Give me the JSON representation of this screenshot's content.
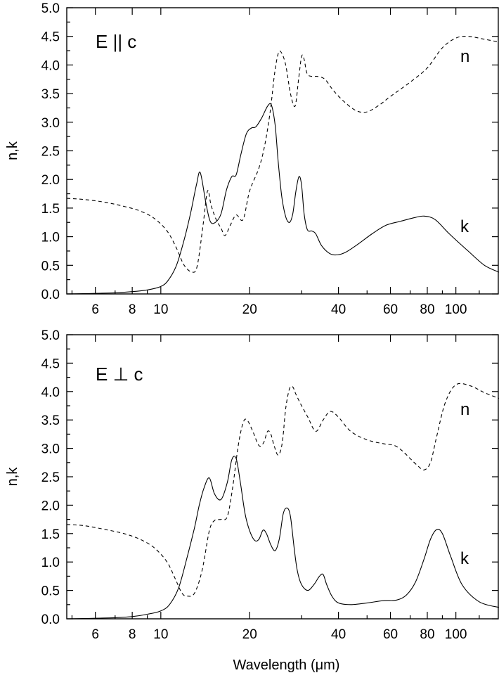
{
  "chart_data": [
    {
      "type": "line",
      "annotation": "E || c",
      "xlabel": "",
      "ylabel": "n,k",
      "x_scale": "log",
      "xlim": [
        4.8,
        140
      ],
      "ylim": [
        0,
        5
      ],
      "x_ticks": [
        6,
        8,
        10,
        20,
        40,
        60,
        80,
        100
      ],
      "y_ticks": [
        0.0,
        0.5,
        1.0,
        1.5,
        2.0,
        2.5,
        3.0,
        3.5,
        4.0,
        4.5,
        5.0
      ],
      "series": [
        {
          "name": "n",
          "style": "dashed",
          "x": [
            4.8,
            5.5,
            6.5,
            7.5,
            8.5,
            9.5,
            10.5,
            11.3,
            12.0,
            12.8,
            13.3,
            13.9,
            14.4,
            14.8,
            15.4,
            16.0,
            16.5,
            17.2,
            18.0,
            19.0,
            20.0,
            21.5,
            22.5,
            23.5,
            24.3,
            25.0,
            25.6,
            26.5,
            27.5,
            28.5,
            29.3,
            30.0,
            30.6,
            31.3,
            32.5,
            34.0,
            36.0,
            38.5,
            42.0,
            46.0,
            50.0,
            55.0,
            60.0,
            70.0,
            80.0,
            90.0,
            100.0,
            110.0,
            125.0,
            140.0
          ],
          "y": [
            1.67,
            1.65,
            1.6,
            1.53,
            1.45,
            1.32,
            1.1,
            0.8,
            0.5,
            0.38,
            0.5,
            1.2,
            1.8,
            1.55,
            1.3,
            1.15,
            1.02,
            1.2,
            1.38,
            1.3,
            1.8,
            2.2,
            2.6,
            3.2,
            3.85,
            4.2,
            4.22,
            4.0,
            3.5,
            3.28,
            3.75,
            4.15,
            4.1,
            3.85,
            3.8,
            3.8,
            3.75,
            3.55,
            3.35,
            3.2,
            3.18,
            3.3,
            3.45,
            3.7,
            3.95,
            4.3,
            4.47,
            4.5,
            4.45,
            4.4
          ]
        },
        {
          "name": "k",
          "style": "solid",
          "x": [
            4.8,
            6.0,
            7.0,
            8.0,
            9.0,
            10.0,
            10.6,
            11.3,
            12.0,
            12.6,
            13.2,
            13.6,
            14.2,
            14.7,
            15.3,
            16.0,
            16.7,
            17.4,
            18.0,
            18.7,
            19.5,
            20.3,
            21.0,
            22.0,
            23.0,
            23.7,
            24.4,
            25.0,
            25.7,
            26.5,
            27.3,
            28.0,
            28.7,
            29.4,
            30.0,
            30.6,
            31.4,
            32.5,
            33.5,
            35.0,
            37.0,
            39.0,
            42.0,
            46.0,
            52.0,
            58.0,
            65.0,
            72.0,
            78.0,
            85.0,
            95.0,
            110.0,
            125.0,
            140.0
          ],
          "y": [
            0.0,
            0.01,
            0.02,
            0.04,
            0.07,
            0.13,
            0.24,
            0.5,
            0.95,
            1.4,
            1.9,
            2.12,
            1.6,
            1.27,
            1.25,
            1.4,
            1.82,
            2.05,
            2.08,
            2.45,
            2.8,
            2.9,
            2.92,
            3.08,
            3.28,
            3.3,
            2.95,
            2.3,
            1.7,
            1.35,
            1.25,
            1.4,
            1.8,
            2.05,
            1.9,
            1.4,
            1.12,
            1.1,
            1.05,
            0.85,
            0.72,
            0.68,
            0.72,
            0.85,
            1.05,
            1.2,
            1.27,
            1.33,
            1.36,
            1.3,
            1.05,
            0.75,
            0.5,
            0.38
          ]
        }
      ]
    },
    {
      "type": "line",
      "annotation": "E ⊥ c",
      "xlabel": "Wavelength (μm)",
      "ylabel": "n,k",
      "x_scale": "log",
      "xlim": [
        4.8,
        140
      ],
      "ylim": [
        0,
        5
      ],
      "x_ticks": [
        6,
        8,
        10,
        20,
        40,
        60,
        80,
        100
      ],
      "y_ticks": [
        0.0,
        0.5,
        1.0,
        1.5,
        2.0,
        2.5,
        3.0,
        3.5,
        4.0,
        4.5,
        5.0
      ],
      "series": [
        {
          "name": "n",
          "style": "dashed",
          "x": [
            4.8,
            5.5,
            6.5,
            7.5,
            8.5,
            9.5,
            10.5,
            11.2,
            11.8,
            12.3,
            13.0,
            13.8,
            14.6,
            15.2,
            16.0,
            16.8,
            17.5,
            18.3,
            19.0,
            19.6,
            20.5,
            21.5,
            22.3,
            23.0,
            23.6,
            24.2,
            25.0,
            25.8,
            26.5,
            27.3,
            28.0,
            28.7,
            30.0,
            31.5,
            33.5,
            35.5,
            37.5,
            40.0,
            44.0,
            50.0,
            57.0,
            62.0,
            66.0,
            70.0,
            74.0,
            78.0,
            82.0,
            86.0,
            92.0,
            100.0,
            112.0,
            125.0,
            140.0
          ],
          "y": [
            1.66,
            1.64,
            1.57,
            1.5,
            1.4,
            1.25,
            1.0,
            0.7,
            0.45,
            0.4,
            0.45,
            0.85,
            1.55,
            1.73,
            1.75,
            1.8,
            2.3,
            3.05,
            3.45,
            3.5,
            3.3,
            3.05,
            3.1,
            3.3,
            3.25,
            3.05,
            2.88,
            3.1,
            3.7,
            4.05,
            4.08,
            3.95,
            3.75,
            3.55,
            3.3,
            3.5,
            3.65,
            3.55,
            3.3,
            3.15,
            3.08,
            3.05,
            2.95,
            2.82,
            2.7,
            2.62,
            2.75,
            3.2,
            3.8,
            4.12,
            4.1,
            3.98,
            3.88
          ]
        },
        {
          "name": "k",
          "style": "solid",
          "x": [
            4.8,
            6.0,
            7.0,
            8.0,
            9.0,
            10.0,
            10.7,
            11.5,
            12.3,
            13.0,
            13.5,
            14.0,
            14.6,
            15.2,
            16.0,
            16.8,
            17.4,
            18.0,
            18.6,
            19.3,
            20.0,
            20.8,
            21.5,
            22.2,
            22.8,
            23.6,
            24.4,
            25.2,
            26.0,
            26.8,
            27.5,
            28.3,
            29.0,
            30.0,
            31.5,
            33.0,
            34.5,
            35.5,
            36.5,
            38.0,
            40.0,
            44.0,
            50.0,
            57.0,
            63.0,
            68.0,
            73.0,
            78.0,
            82.0,
            86.0,
            90.0,
            96.0,
            105.0,
            120.0,
            140.0
          ],
          "y": [
            0.0,
            0.01,
            0.02,
            0.04,
            0.08,
            0.14,
            0.25,
            0.55,
            1.1,
            1.6,
            2.0,
            2.3,
            2.48,
            2.2,
            2.1,
            2.4,
            2.8,
            2.82,
            2.4,
            1.85,
            1.55,
            1.38,
            1.4,
            1.56,
            1.5,
            1.3,
            1.2,
            1.4,
            1.85,
            1.95,
            1.8,
            1.25,
            0.85,
            0.6,
            0.5,
            0.6,
            0.75,
            0.78,
            0.6,
            0.4,
            0.28,
            0.25,
            0.28,
            0.32,
            0.33,
            0.42,
            0.65,
            1.05,
            1.4,
            1.57,
            1.5,
            1.1,
            0.6,
            0.3,
            0.2
          ]
        }
      ]
    }
  ]
}
